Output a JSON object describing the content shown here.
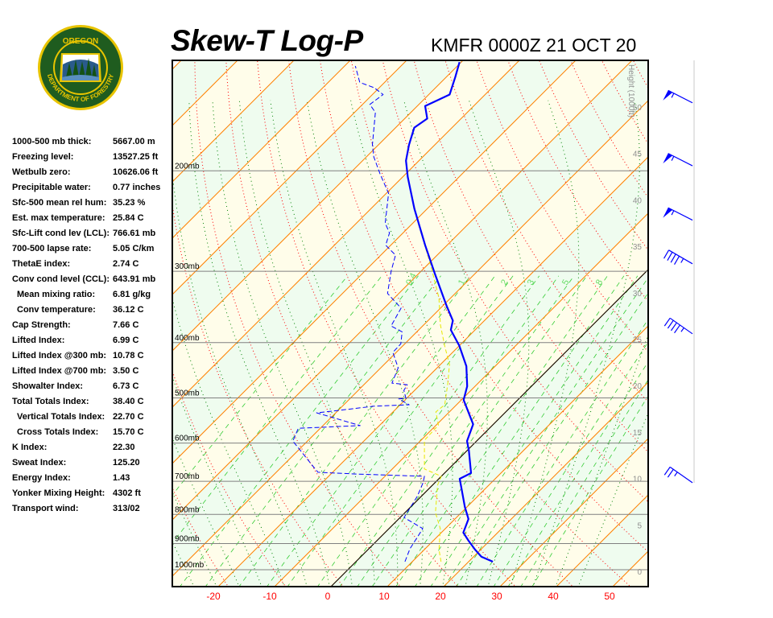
{
  "header": {
    "title": "Skew-T Log-P",
    "subtitle": "KMFR 0000Z 21 OCT 20",
    "logo_text": "OREGON DEPARTMENT OF FORESTRY"
  },
  "stats": [
    {
      "label": "1000-500 mb thick:",
      "value": "5667.00 m"
    },
    {
      "label": "Freezing level:",
      "value": "13527.25 ft"
    },
    {
      "label": "Wetbulb zero:",
      "value": "10626.06 ft"
    },
    {
      "label": "Precipitable water:",
      "value": "0.77 inches"
    },
    {
      "label": "Sfc-500 mean rel hum:",
      "value": "35.23 %"
    },
    {
      "label": "Est. max temperature:",
      "value": "25.84 C"
    },
    {
      "label": "Sfc-Lift cond lev (LCL):",
      "value": "766.61 mb"
    },
    {
      "label": "700-500 lapse rate:",
      "value": "5.05 C/km"
    },
    {
      "label": "ThetaE index:",
      "value": "2.74 C"
    },
    {
      "label": "Conv cond level (CCL):",
      "value": "643.91 mb"
    },
    {
      "label": "Mean mixing ratio:",
      "value": "6.81 g/kg",
      "indent": true
    },
    {
      "label": "Conv temperature:",
      "value": "36.12 C",
      "indent": true
    },
    {
      "label": "Cap Strength:",
      "value": "7.66 C"
    },
    {
      "label": "Lifted Index:",
      "value": "6.99 C"
    },
    {
      "label": "Lifted Index @300 mb:",
      "value": "10.78 C"
    },
    {
      "label": "Lifted Index @700 mb:",
      "value": "3.50 C"
    },
    {
      "label": "Showalter Index:",
      "value": "6.73 C"
    },
    {
      "label": "Total Totals Index:",
      "value": "38.40 C"
    },
    {
      "label": "Vertical Totals Index:",
      "value": "22.70 C",
      "indent": true
    },
    {
      "label": "Cross Totals Index:",
      "value": "15.70 C",
      "indent": true
    },
    {
      "label": "K Index:",
      "value": "22.30"
    },
    {
      "label": "Sweat Index:",
      "value": "125.20"
    },
    {
      "label": "Energy Index:",
      "value": "1.43"
    },
    {
      "label": "Yonker Mixing Height:",
      "value": "4302 ft"
    },
    {
      "label": "Transport wind:",
      "value": "313/02"
    }
  ],
  "chart_data": {
    "type": "skew-t",
    "x_label_unit": "C",
    "x_ticks": [
      -20,
      -10,
      0,
      10,
      20,
      30,
      40,
      50
    ],
    "x_tick_labels": [
      "-20",
      "-10",
      "0",
      "10",
      "20",
      "30",
      "40",
      "50"
    ],
    "y_scale": "log-pressure",
    "pressure_levels": [
      {
        "p": 200,
        "label": "200mb"
      },
      {
        "p": 300,
        "label": "300mb"
      },
      {
        "p": 400,
        "label": "400mb"
      },
      {
        "p": 500,
        "label": "500mb"
      },
      {
        "p": 600,
        "label": "600mb"
      },
      {
        "p": 700,
        "label": "700mb"
      },
      {
        "p": 800,
        "label": "800mb"
      },
      {
        "p": 900,
        "label": "900mb"
      },
      {
        "p": 1000,
        "label": "1000mb"
      }
    ],
    "height_axis": {
      "title": "Height (1000ft)",
      "ticks": [
        0,
        5,
        10,
        15,
        20,
        25,
        30,
        35,
        40,
        45,
        50
      ],
      "tick_labels": [
        "0",
        "5",
        "10",
        "15",
        "20",
        "25",
        "30",
        "35",
        "40",
        "45",
        "50"
      ]
    },
    "mixing_ratio_labels": [
      {
        "w": 0.4,
        "label": "0.4"
      },
      {
        "w": 1,
        "label": "1"
      },
      {
        "w": 2,
        "label": "2"
      },
      {
        "w": 3,
        "label": "3"
      },
      {
        "w": 5,
        "label": "5"
      },
      {
        "w": 8,
        "label": "8"
      }
    ],
    "temperature": [
      [
        968,
        24.3
      ],
      [
        949,
        21.4
      ],
      [
        922,
        19.0
      ],
      [
        890,
        16.3
      ],
      [
        861,
        13.9
      ],
      [
        815,
        12.4
      ],
      [
        776,
        9.6
      ],
      [
        720,
        5.7
      ],
      [
        693,
        3.7
      ],
      [
        677,
        4.7
      ],
      [
        618,
        0.3
      ],
      [
        595,
        -1.7
      ],
      [
        556,
        -3.6
      ],
      [
        504,
        -9.6
      ],
      [
        477,
        -11.4
      ],
      [
        440,
        -15.1
      ],
      [
        405,
        -20.0
      ],
      [
        380,
        -24.3
      ],
      [
        366,
        -25.6
      ],
      [
        345,
        -29.3
      ],
      [
        303,
        -37.1
      ],
      [
        270,
        -43.9
      ],
      [
        233,
        -52.3
      ],
      [
        205,
        -59.1
      ],
      [
        192,
        -62.3
      ],
      [
        180,
        -64.6
      ],
      [
        168,
        -66.7
      ],
      [
        162,
        -66.0
      ],
      [
        154,
        -68.6
      ],
      [
        147,
        -66.3
      ],
      [
        137,
        -68.4
      ],
      [
        129,
        -70.3
      ]
    ],
    "dewpoint": [
      [
        968,
        8.7
      ],
      [
        919,
        7.3
      ],
      [
        847,
        6.0
      ],
      [
        810,
        0.7
      ],
      [
        744,
        -0.7
      ],
      [
        704,
        -2.1
      ],
      [
        686,
        -3.0
      ],
      [
        680,
        -15.1
      ],
      [
        675,
        -22.6
      ],
      [
        660,
        -24.4
      ],
      [
        595,
        -32.6
      ],
      [
        565,
        -33.9
      ],
      [
        559,
        -23.4
      ],
      [
        531,
        -33.4
      ],
      [
        526,
        -30.0
      ],
      [
        517,
        -24.4
      ],
      [
        514,
        -18.4
      ],
      [
        502,
        -21.3
      ],
      [
        501,
        -20.1
      ],
      [
        485,
        -21.9
      ],
      [
        474,
        -22.3
      ],
      [
        471,
        -25.3
      ],
      [
        443,
        -26.9
      ],
      [
        416,
        -30.6
      ],
      [
        402,
        -30.7
      ],
      [
        383,
        -32.6
      ],
      [
        374,
        -35.6
      ],
      [
        348,
        -37.0
      ],
      [
        328,
        -42.0
      ],
      [
        300,
        -45.3
      ],
      [
        281,
        -47.4
      ],
      [
        270,
        -50.9
      ],
      [
        257,
        -52.4
      ],
      [
        247,
        -54.9
      ],
      [
        219,
        -59.6
      ],
      [
        203,
        -64.4
      ],
      [
        189,
        -68.7
      ],
      [
        180,
        -71.1
      ],
      [
        158,
        -76.3
      ],
      [
        153,
        -78.7
      ],
      [
        147,
        -78.1
      ],
      [
        143,
        -80.9
      ],
      [
        140,
        -84.4
      ],
      [
        131,
        -88.1
      ]
    ],
    "parcel": [
      [
        968,
        15.1
      ],
      [
        922,
        12.6
      ],
      [
        847,
        9.1
      ],
      [
        794,
        5.4
      ],
      [
        711,
        0.9
      ],
      [
        686,
        0.0
      ],
      [
        666,
        -4.3
      ],
      [
        593,
        -9.4
      ],
      [
        558,
        -9.6
      ],
      [
        529,
        -12.4
      ],
      [
        514,
        -12.1
      ],
      [
        472,
        -15.3
      ],
      [
        437,
        -18.4
      ],
      [
        405,
        -22.6
      ],
      [
        372,
        -27.1
      ],
      [
        334,
        -32.1
      ],
      [
        293,
        -39.3
      ],
      [
        249,
        -48.6
      ],
      [
        202,
        -59.9
      ]
    ],
    "wind_barbs": [
      {
        "p": 152,
        "dir": 297,
        "speed_kt": 55
      },
      {
        "p": 196,
        "dir": 297,
        "speed_kt": 55
      },
      {
        "p": 244,
        "dir": 297,
        "speed_kt": 55
      },
      {
        "p": 291,
        "dir": 300,
        "speed_kt": 45
      },
      {
        "p": 386,
        "dir": 305,
        "speed_kt": 45
      },
      {
        "p": 704,
        "dir": 305,
        "speed_kt": 25
      }
    ],
    "colors": {
      "temperature": "#0000ff",
      "dewpoint": "#0000ff",
      "parcel": "#e8e800",
      "isotherm": "#ff8000",
      "zero_isotherm": "#000000",
      "dry_adiabat": "#ff0000",
      "moist_adiabat": "#008000",
      "mixing_ratio": "#33cc33",
      "isobar": "#808080",
      "band_a": "#fffdea",
      "band_b": "#effcef",
      "tick_label": "#ff0000",
      "height_label": "#909090",
      "barb": "#0000ff"
    }
  }
}
